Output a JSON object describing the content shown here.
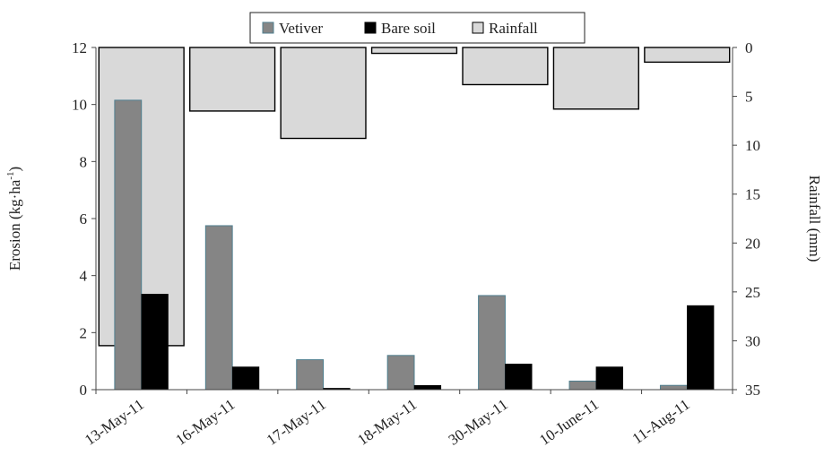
{
  "chart_data": {
    "type": "bar",
    "categories": [
      "13-May-11",
      "16-May-11",
      "17-May-11",
      "18-May-11",
      "30-May-11",
      "10-June-11",
      "11-Aug-11"
    ],
    "series": [
      {
        "name": "Vetiver",
        "axis": "left",
        "values": [
          10.15,
          5.75,
          1.05,
          1.2,
          3.3,
          0.3,
          0.15
        ],
        "color": "#858585",
        "edge": "#4f7f8f"
      },
      {
        "name": "Bare soil",
        "axis": "left",
        "values": [
          3.35,
          0.8,
          0.05,
          0.15,
          0.9,
          0.8,
          2.95
        ],
        "color": "#000000",
        "edge": "#000000"
      },
      {
        "name": "Rainfall",
        "axis": "right",
        "inverted": true,
        "values": [
          30.5,
          6.5,
          9.3,
          0.6,
          3.8,
          6.3,
          1.5
        ],
        "color": "#d9d9d9",
        "edge": "#000000"
      }
    ],
    "ylabel": "Erosion (kg·ha⁻¹)",
    "y2label": "Rainfall (mm)",
    "ylim": [
      0,
      12
    ],
    "yticks": [
      0,
      2,
      4,
      6,
      8,
      10,
      12
    ],
    "y2lim": [
      0,
      35
    ],
    "y2ticks": [
      0,
      5,
      10,
      15,
      20,
      25,
      30,
      35
    ],
    "legend_position": "top-center",
    "grid": false
  }
}
